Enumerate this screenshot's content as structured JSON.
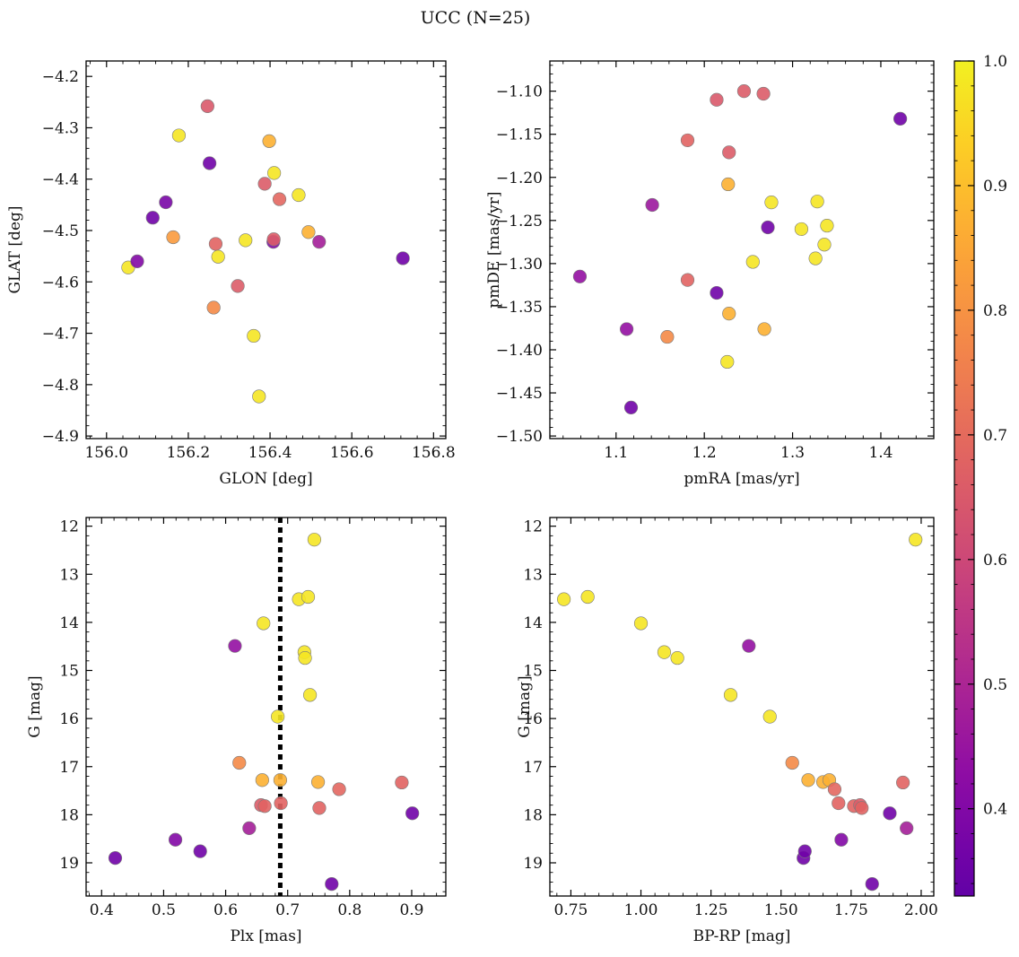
{
  "suptitle": "UCC (N=25)",
  "colorbar": {
    "range": [
      0.33,
      1.0
    ],
    "ticks": [
      0.4,
      0.5,
      0.6,
      0.7,
      0.8,
      0.9,
      1.0
    ],
    "tick_labels": [
      "0.4",
      "0.5",
      "0.6",
      "0.7",
      "0.8",
      "0.9",
      "1.0"
    ],
    "colormap": "plasma"
  },
  "chart_data": [
    {
      "type": "scatter",
      "panel": "top-left",
      "xlabel": "GLON [deg]",
      "ylabel": "GLAT [deg]",
      "xlim": [
        155.95,
        156.83
      ],
      "ylim": [
        -4.905,
        -4.17
      ],
      "y_inverted": false,
      "xticks": [
        156.0,
        156.2,
        156.4,
        156.6,
        156.8
      ],
      "xtick_labels": [
        "156.0",
        "156.2",
        "156.4",
        "156.6",
        "156.8"
      ],
      "yticks": [
        -4.9,
        -4.8,
        -4.7,
        -4.6,
        -4.5,
        -4.4,
        -4.3,
        -4.2
      ],
      "ytick_labels": [
        "−4.9",
        "−4.8",
        "−4.7",
        "−4.6",
        "−4.5",
        "−4.4",
        "−4.3",
        "−4.2"
      ],
      "points": [
        {
          "x": 156.053,
          "y": -4.572,
          "c": 0.98
        },
        {
          "x": 156.075,
          "y": -4.56,
          "c": 0.4
        },
        {
          "x": 156.113,
          "y": -4.475,
          "c": 0.36
        },
        {
          "x": 156.145,
          "y": -4.445,
          "c": 0.38
        },
        {
          "x": 156.163,
          "y": -4.513,
          "c": 0.82
        },
        {
          "x": 156.177,
          "y": -4.315,
          "c": 0.98
        },
        {
          "x": 156.247,
          "y": -4.258,
          "c": 0.65
        },
        {
          "x": 156.252,
          "y": -4.369,
          "c": 0.36
        },
        {
          "x": 156.262,
          "y": -4.65,
          "c": 0.78
        },
        {
          "x": 156.267,
          "y": -4.526,
          "c": 0.68
        },
        {
          "x": 156.273,
          "y": -4.551,
          "c": 0.98
        },
        {
          "x": 156.321,
          "y": -4.608,
          "c": 0.66
        },
        {
          "x": 156.34,
          "y": -4.519,
          "c": 0.98
        },
        {
          "x": 156.36,
          "y": -4.705,
          "c": 0.98
        },
        {
          "x": 156.373,
          "y": -4.823,
          "c": 0.98
        },
        {
          "x": 156.387,
          "y": -4.409,
          "c": 0.66
        },
        {
          "x": 156.398,
          "y": -4.326,
          "c": 0.87
        },
        {
          "x": 156.408,
          "y": -4.522,
          "c": 0.4
        },
        {
          "x": 156.409,
          "y": -4.517,
          "c": 0.66
        },
        {
          "x": 156.41,
          "y": -4.388,
          "c": 0.98
        },
        {
          "x": 156.423,
          "y": -4.439,
          "c": 0.69
        },
        {
          "x": 156.47,
          "y": -4.431,
          "c": 0.98
        },
        {
          "x": 156.494,
          "y": -4.503,
          "c": 0.87
        },
        {
          "x": 156.52,
          "y": -4.522,
          "c": 0.48
        },
        {
          "x": 156.725,
          "y": -4.554,
          "c": 0.36
        }
      ]
    },
    {
      "type": "scatter",
      "panel": "top-right",
      "xlabel": "pmRA [mas/yr]",
      "ylabel": "pmDE [mas/yr]",
      "xlim": [
        1.025,
        1.46
      ],
      "ylim": [
        -1.503,
        -1.065
      ],
      "y_inverted": false,
      "xticks": [
        1.1,
        1.2,
        1.3,
        1.4
      ],
      "xtick_labels": [
        "1.1",
        "1.2",
        "1.3",
        "1.4"
      ],
      "yticks": [
        -1.5,
        -1.45,
        -1.4,
        -1.35,
        -1.3,
        -1.25,
        -1.2,
        -1.15,
        -1.1
      ],
      "ytick_labels": [
        "−1.50",
        "−1.45",
        "−1.40",
        "−1.35",
        "−1.30",
        "−1.25",
        "−1.20",
        "−1.15",
        "−1.10"
      ],
      "points": [
        {
          "x": 1.059,
          "y": -1.315,
          "c": 0.44
        },
        {
          "x": 1.112,
          "y": -1.376,
          "c": 0.44
        },
        {
          "x": 1.117,
          "y": -1.467,
          "c": 0.36
        },
        {
          "x": 1.141,
          "y": -1.232,
          "c": 0.46
        },
        {
          "x": 1.158,
          "y": -1.385,
          "c": 0.78
        },
        {
          "x": 1.181,
          "y": -1.157,
          "c": 0.68
        },
        {
          "x": 1.181,
          "y": -1.319,
          "c": 0.68
        },
        {
          "x": 1.214,
          "y": -1.11,
          "c": 0.65
        },
        {
          "x": 1.214,
          "y": -1.334,
          "c": 0.36
        },
        {
          "x": 1.226,
          "y": -1.414,
          "c": 0.98
        },
        {
          "x": 1.227,
          "y": -1.208,
          "c": 0.87
        },
        {
          "x": 1.228,
          "y": -1.358,
          "c": 0.87
        },
        {
          "x": 1.228,
          "y": -1.171,
          "c": 0.66
        },
        {
          "x": 1.245,
          "y": -1.1,
          "c": 0.66
        },
        {
          "x": 1.255,
          "y": -1.298,
          "c": 0.98
        },
        {
          "x": 1.267,
          "y": -1.103,
          "c": 0.66
        },
        {
          "x": 1.268,
          "y": -1.376,
          "c": 0.87
        },
        {
          "x": 1.272,
          "y": -1.258,
          "c": 0.36
        },
        {
          "x": 1.276,
          "y": -1.229,
          "c": 0.98
        },
        {
          "x": 1.31,
          "y": -1.26,
          "c": 0.98
        },
        {
          "x": 1.326,
          "y": -1.294,
          "c": 0.98
        },
        {
          "x": 1.328,
          "y": -1.228,
          "c": 0.98
        },
        {
          "x": 1.336,
          "y": -1.278,
          "c": 0.98
        },
        {
          "x": 1.339,
          "y": -1.256,
          "c": 0.98
        },
        {
          "x": 1.422,
          "y": -1.132,
          "c": 0.36
        }
      ]
    },
    {
      "type": "scatter",
      "panel": "bottom-left",
      "xlabel": "Plx [mas]",
      "ylabel": "G [mag]",
      "xlim": [
        0.375,
        0.955
      ],
      "ylim": [
        19.69,
        11.82
      ],
      "y_inverted": true,
      "xticks": [
        0.4,
        0.5,
        0.6,
        0.7,
        0.8,
        0.9
      ],
      "xtick_labels": [
        "0.4",
        "0.5",
        "0.6",
        "0.7",
        "0.8",
        "0.9"
      ],
      "yticks": [
        12,
        13,
        14,
        15,
        16,
        17,
        18,
        19
      ],
      "ytick_labels": [
        "12",
        "13",
        "14",
        "15",
        "16",
        "17",
        "18",
        "19"
      ],
      "vline": {
        "x": 0.688,
        "style": "dotted",
        "color": "#000000"
      },
      "points": [
        {
          "x": 0.422,
          "y": 18.9,
          "c": 0.36
        },
        {
          "x": 0.519,
          "y": 18.52,
          "c": 0.4
        },
        {
          "x": 0.559,
          "y": 18.76,
          "c": 0.36
        },
        {
          "x": 0.615,
          "y": 14.49,
          "c": 0.44
        },
        {
          "x": 0.622,
          "y": 16.92,
          "c": 0.78
        },
        {
          "x": 0.638,
          "y": 18.28,
          "c": 0.48
        },
        {
          "x": 0.657,
          "y": 17.8,
          "c": 0.66
        },
        {
          "x": 0.659,
          "y": 17.28,
          "c": 0.87
        },
        {
          "x": 0.661,
          "y": 14.02,
          "c": 0.98
        },
        {
          "x": 0.663,
          "y": 17.82,
          "c": 0.68
        },
        {
          "x": 0.684,
          "y": 15.96,
          "c": 0.98
        },
        {
          "x": 0.688,
          "y": 17.28,
          "c": 0.87
        },
        {
          "x": 0.689,
          "y": 17.76,
          "c": 0.68
        },
        {
          "x": 0.718,
          "y": 13.52,
          "c": 0.98
        },
        {
          "x": 0.727,
          "y": 14.62,
          "c": 0.98
        },
        {
          "x": 0.728,
          "y": 14.74,
          "c": 0.98
        },
        {
          "x": 0.733,
          "y": 13.47,
          "c": 0.98
        },
        {
          "x": 0.736,
          "y": 15.51,
          "c": 0.98
        },
        {
          "x": 0.743,
          "y": 12.28,
          "c": 0.98
        },
        {
          "x": 0.749,
          "y": 17.32,
          "c": 0.87
        },
        {
          "x": 0.751,
          "y": 17.86,
          "c": 0.68
        },
        {
          "x": 0.771,
          "y": 19.44,
          "c": 0.36
        },
        {
          "x": 0.783,
          "y": 17.47,
          "c": 0.69
        },
        {
          "x": 0.884,
          "y": 17.33,
          "c": 0.68
        },
        {
          "x": 0.901,
          "y": 17.97,
          "c": 0.36
        }
      ]
    },
    {
      "type": "scatter",
      "panel": "bottom-right",
      "xlabel": "BP-RP [mag]",
      "ylabel": "G [mag]",
      "xlim": [
        0.675,
        2.045
      ],
      "ylim": [
        19.69,
        11.82
      ],
      "y_inverted": true,
      "xticks": [
        0.75,
        1.0,
        1.25,
        1.5,
        1.75,
        2.0
      ],
      "xtick_labels": [
        "0.75",
        "1.00",
        "1.25",
        "1.50",
        "1.75",
        "2.00"
      ],
      "yticks": [
        12,
        13,
        14,
        15,
        16,
        17,
        18,
        19
      ],
      "ytick_labels": [
        "12",
        "13",
        "14",
        "15",
        "16",
        "17",
        "18",
        "19"
      ],
      "points": [
        {
          "x": 0.725,
          "y": 13.52,
          "c": 0.98
        },
        {
          "x": 0.81,
          "y": 13.47,
          "c": 0.98
        },
        {
          "x": 1.0,
          "y": 14.02,
          "c": 0.98
        },
        {
          "x": 1.083,
          "y": 14.62,
          "c": 0.98
        },
        {
          "x": 1.13,
          "y": 14.74,
          "c": 0.98
        },
        {
          "x": 1.32,
          "y": 15.51,
          "c": 0.98
        },
        {
          "x": 1.385,
          "y": 14.49,
          "c": 0.44
        },
        {
          "x": 1.46,
          "y": 15.96,
          "c": 0.98
        },
        {
          "x": 1.54,
          "y": 16.92,
          "c": 0.78
        },
        {
          "x": 1.58,
          "y": 18.9,
          "c": 0.36
        },
        {
          "x": 1.585,
          "y": 18.76,
          "c": 0.36
        },
        {
          "x": 1.597,
          "y": 17.28,
          "c": 0.87
        },
        {
          "x": 1.65,
          "y": 17.32,
          "c": 0.87
        },
        {
          "x": 1.672,
          "y": 17.28,
          "c": 0.87
        },
        {
          "x": 1.691,
          "y": 17.47,
          "c": 0.69
        },
        {
          "x": 1.705,
          "y": 17.76,
          "c": 0.68
        },
        {
          "x": 1.715,
          "y": 18.52,
          "c": 0.4
        },
        {
          "x": 1.76,
          "y": 17.82,
          "c": 0.68
        },
        {
          "x": 1.782,
          "y": 17.8,
          "c": 0.66
        },
        {
          "x": 1.788,
          "y": 17.86,
          "c": 0.68
        },
        {
          "x": 1.825,
          "y": 19.44,
          "c": 0.36
        },
        {
          "x": 1.888,
          "y": 17.97,
          "c": 0.36
        },
        {
          "x": 1.935,
          "y": 17.33,
          "c": 0.68
        },
        {
          "x": 1.948,
          "y": 18.28,
          "c": 0.48
        },
        {
          "x": 1.98,
          "y": 12.28,
          "c": 0.98
        }
      ]
    }
  ]
}
